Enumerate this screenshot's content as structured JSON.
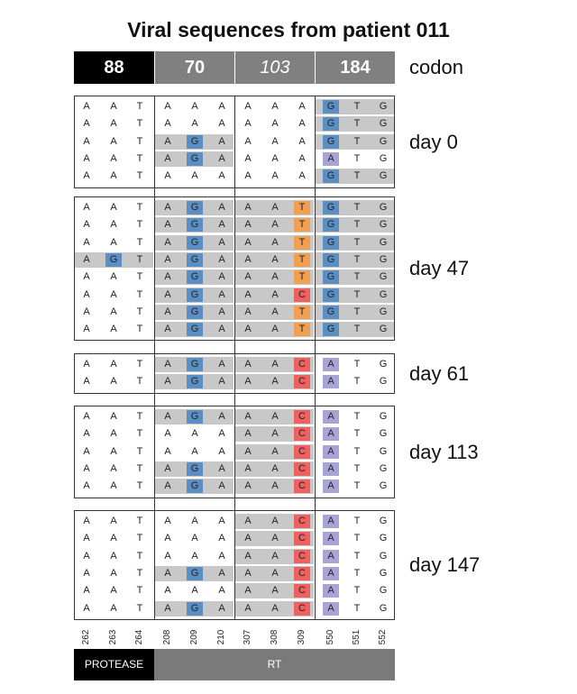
{
  "title": "Viral sequences from patient 011",
  "codon_label": "codon",
  "colors": {
    "protease_header": "#000000",
    "rt_header": "#808080",
    "row_shade": "#c8c8c8",
    "G": "#5b8fc4",
    "T": "#f0a050",
    "C": "#ef6060",
    "A": "#a9a4d6",
    "region_protease": "#000000",
    "region_rt": "#7a7a7a"
  },
  "codons": [
    {
      "label": "88",
      "style": "bold",
      "region": "protease"
    },
    {
      "label": "70",
      "style": "bold",
      "region": "rt"
    },
    {
      "label": "103",
      "style": "italic",
      "region": "rt"
    },
    {
      "label": "184",
      "style": "bold",
      "region": "rt"
    }
  ],
  "positions": [
    "262",
    "263",
    "264",
    "208",
    "209",
    "210",
    "307",
    "308",
    "309",
    "550",
    "551",
    "552"
  ],
  "regions": [
    {
      "label": "PROTEASE"
    },
    {
      "label": "RT"
    }
  ],
  "groups": [
    {
      "day": "day 0",
      "rows": [
        {
          "seq": "AATAAAAAAGTG",
          "shade": [
            false,
            false,
            false,
            true
          ],
          "hl": [
            9
          ]
        },
        {
          "seq": "AATAAAAAAGTG",
          "shade": [
            false,
            false,
            false,
            true
          ],
          "hl": [
            9
          ]
        },
        {
          "seq": "AATAGAAAAGTG",
          "shade": [
            false,
            true,
            false,
            true
          ],
          "hl": [
            4,
            9
          ]
        },
        {
          "seq": "AATAGAAAAATG",
          "shade": [
            false,
            true,
            false,
            false
          ],
          "hl": [
            4,
            9
          ]
        },
        {
          "seq": "AATAAAAAAGTG",
          "shade": [
            false,
            false,
            false,
            true
          ],
          "hl": [
            9
          ]
        }
      ]
    },
    {
      "day": "day 47",
      "rows": [
        {
          "seq": "AATAGAAATGTG",
          "shade": [
            false,
            true,
            true,
            true
          ],
          "hl": [
            4,
            8,
            9
          ]
        },
        {
          "seq": "AATAGAAATGTG",
          "shade": [
            false,
            true,
            true,
            true
          ],
          "hl": [
            4,
            8,
            9
          ]
        },
        {
          "seq": "AATAGAAATGTG",
          "shade": [
            false,
            true,
            true,
            true
          ],
          "hl": [
            4,
            8,
            9
          ]
        },
        {
          "seq": "AGTAGAAATGTG",
          "shade": [
            true,
            true,
            true,
            true
          ],
          "hl": [
            1,
            4,
            8,
            9
          ]
        },
        {
          "seq": "AATAGAAATGTG",
          "shade": [
            false,
            true,
            true,
            true
          ],
          "hl": [
            4,
            8,
            9
          ]
        },
        {
          "seq": "AATAGAAACGTG",
          "shade": [
            false,
            true,
            true,
            true
          ],
          "hl": [
            4,
            8,
            9
          ]
        },
        {
          "seq": "AATAGAAATGTG",
          "shade": [
            false,
            true,
            true,
            true
          ],
          "hl": [
            4,
            8,
            9
          ]
        },
        {
          "seq": "AATAGAAATGTG",
          "shade": [
            false,
            true,
            true,
            true
          ],
          "hl": [
            4,
            8,
            9
          ]
        }
      ]
    },
    {
      "day": "day 61",
      "rows": [
        {
          "seq": "AATAGAAACATG",
          "shade": [
            false,
            true,
            true,
            false
          ],
          "hl": [
            4,
            8,
            9
          ]
        },
        {
          "seq": "AATAGAAACATG",
          "shade": [
            false,
            true,
            true,
            false
          ],
          "hl": [
            4,
            8,
            9
          ]
        }
      ]
    },
    {
      "day": "day 113",
      "rows": [
        {
          "seq": "AATAGAAACATG",
          "shade": [
            false,
            true,
            true,
            false
          ],
          "hl": [
            4,
            8,
            9
          ]
        },
        {
          "seq": "AATAAAAACATG",
          "shade": [
            false,
            false,
            true,
            false
          ],
          "hl": [
            8,
            9
          ]
        },
        {
          "seq": "AATAAAAACATG",
          "shade": [
            false,
            false,
            true,
            false
          ],
          "hl": [
            8,
            9
          ]
        },
        {
          "seq": "AATAGAAACATG",
          "shade": [
            false,
            true,
            true,
            false
          ],
          "hl": [
            4,
            8,
            9
          ]
        },
        {
          "seq": "AATAGAAACATG",
          "shade": [
            false,
            true,
            true,
            false
          ],
          "hl": [
            4,
            8,
            9
          ]
        }
      ]
    },
    {
      "day": "day 147",
      "rows": [
        {
          "seq": "AATAAAAACATG",
          "shade": [
            false,
            false,
            true,
            false
          ],
          "hl": [
            8,
            9
          ]
        },
        {
          "seq": "AATAAAAACATG",
          "shade": [
            false,
            false,
            true,
            false
          ],
          "hl": [
            8,
            9
          ]
        },
        {
          "seq": "AATAAAAACATG",
          "shade": [
            false,
            false,
            true,
            false
          ],
          "hl": [
            8,
            9
          ]
        },
        {
          "seq": "AATAGAAACATG",
          "shade": [
            false,
            true,
            true,
            false
          ],
          "hl": [
            4,
            8,
            9
          ]
        },
        {
          "seq": "AATAAAAACATG",
          "shade": [
            false,
            false,
            true,
            false
          ],
          "hl": [
            8,
            9
          ]
        },
        {
          "seq": "AATAGAAACATG",
          "shade": [
            false,
            true,
            true,
            false
          ],
          "hl": [
            4,
            8,
            9
          ]
        }
      ]
    }
  ]
}
